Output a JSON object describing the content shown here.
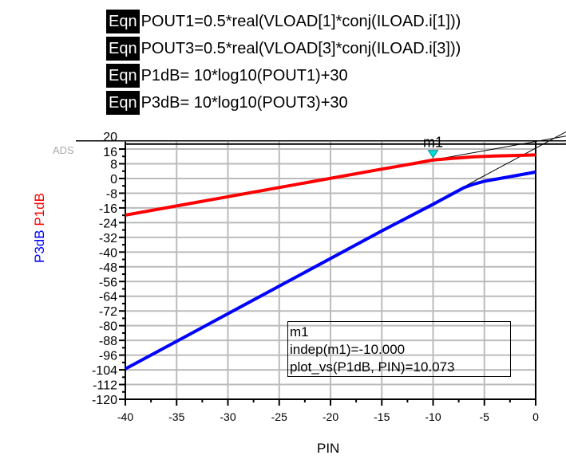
{
  "equations": [
    {
      "tag": "Eqn",
      "text": "POUT1=0.5*real(VLOAD[1]*conj(ILOAD.i[1]))"
    },
    {
      "tag": "Eqn",
      "text": "POUT3=0.5*real(VLOAD[3]*conj(ILOAD.i[3]))"
    },
    {
      "tag": "Eqn",
      "text": "P1dB= 10*log10(POUT1)+30"
    },
    {
      "tag": "Eqn",
      "text": "P3dB= 10*log10(POUT3)+30"
    }
  ],
  "watermark": "ADS",
  "chart_data": {
    "type": "line",
    "xlabel": "PIN",
    "ylabels": [
      {
        "text": "P3dB",
        "color": "#0000ff"
      },
      {
        "text": "P1dB",
        "color": "#ff0000"
      }
    ],
    "xlim": [
      -40,
      0
    ],
    "ylim": [
      -120,
      20
    ],
    "xticks": [
      -40,
      -35,
      -30,
      -25,
      -20,
      -15,
      -10,
      -5,
      0
    ],
    "yticks": [
      20,
      16,
      8,
      0,
      -8,
      -16,
      -24,
      -32,
      -40,
      -48,
      -56,
      -64,
      -72,
      -80,
      -88,
      -96,
      -104,
      -112,
      -120
    ],
    "grid": true,
    "series": [
      {
        "name": "P1dB",
        "color": "#ff0000",
        "x": [
          -40,
          -15,
          -12,
          -10,
          -8,
          -6,
          -4,
          -2,
          0
        ],
        "y": [
          -19.9,
          5.1,
          8,
          10.07,
          11,
          11.8,
          12.2,
          12.5,
          12.8
        ]
      },
      {
        "name": "P3dB",
        "color": "#0000ff",
        "x": [
          -40,
          -15,
          -12,
          -10,
          -8,
          -7,
          -6,
          -5,
          -4,
          -2,
          0
        ],
        "y": [
          -103.5,
          -28.5,
          -19.8,
          -14,
          -8,
          -5,
          -3,
          -1.5,
          -0.5,
          1.5,
          3.5
        ]
      }
    ],
    "extrapolations": [
      {
        "slope": 1,
        "intercept": 20.1
      },
      {
        "slope": 3,
        "intercept": 16.5
      }
    ],
    "marker": {
      "name": "m1",
      "x": -10,
      "y": 10.073,
      "color": "#00e0e0"
    },
    "legend": {
      "lines": [
        "m1",
        "indep(m1)=-10.000",
        "plot_vs(P1dB, PIN)=10.073"
      ]
    }
  }
}
